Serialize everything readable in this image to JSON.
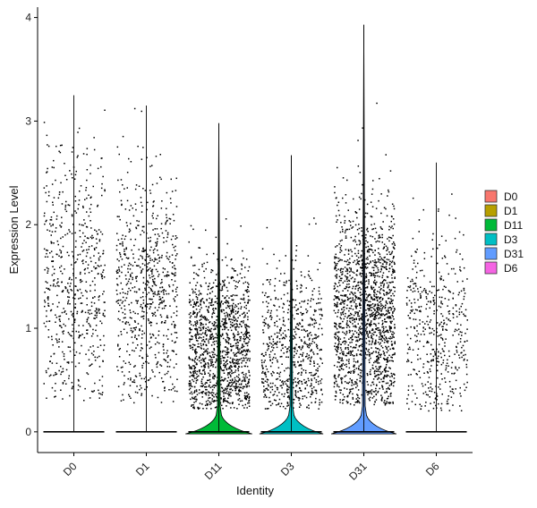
{
  "chart_data": {
    "type": "violin",
    "xlabel": "Identity",
    "ylabel": "Expression Level",
    "ylim": [
      -0.2,
      4.1
    ],
    "yticks": [
      0,
      1,
      2,
      3,
      4
    ],
    "categories": [
      "D0",
      "D1",
      "D11",
      "D3",
      "D31",
      "D6"
    ],
    "series": [
      {
        "name": "D0",
        "color": "#F8766D",
        "max": 3.25,
        "violin_peak_width": 0.0
      },
      {
        "name": "D1",
        "color": "#B79F00",
        "max": 3.15,
        "violin_peak_width": 0.0
      },
      {
        "name": "D11",
        "color": "#00BA38",
        "max": 2.98,
        "violin_peak_width": 0.92
      },
      {
        "name": "D3",
        "color": "#00BFC4",
        "max": 2.67,
        "violin_peak_width": 0.88
      },
      {
        "name": "D31",
        "color": "#619CFF",
        "max": 3.93,
        "violin_peak_width": 0.9
      },
      {
        "name": "D6",
        "color": "#F564E3",
        "max": 2.6,
        "violin_peak_width": 0.0
      }
    ],
    "legend_position": "right",
    "grid": false
  }
}
